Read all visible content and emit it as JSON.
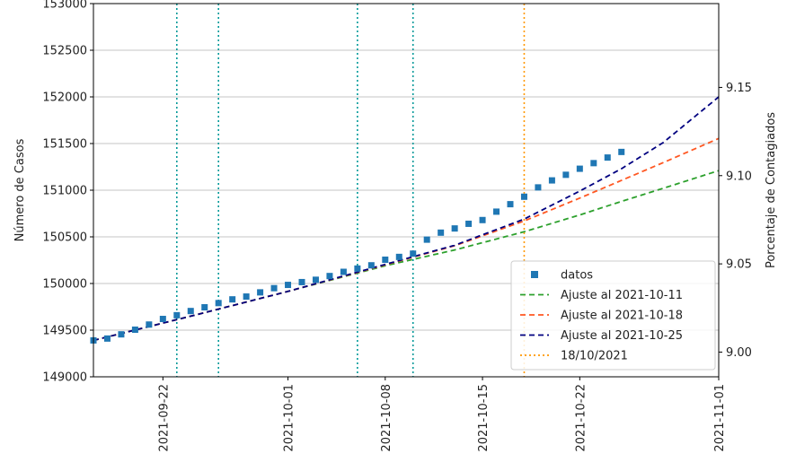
{
  "chart_data": {
    "type": "line",
    "title": "",
    "xlabel": "",
    "ylabel": "Número de Casos",
    "y2label": "Porcentaje de Contagiados",
    "xlim": [
      "2021-09-17",
      "2021-11-01"
    ],
    "ylim": [
      149000,
      153000
    ],
    "y2lim": [
      8.986,
      9.1975
    ],
    "x_ticks": [
      "2021-09-22",
      "2021-10-01",
      "2021-10-08",
      "2021-10-15",
      "2021-10-22",
      "2021-11-01"
    ],
    "y_ticks": [
      149000,
      149500,
      150000,
      150500,
      151000,
      151500,
      152000,
      152500,
      153000
    ],
    "y2_ticks": [
      9.0,
      9.05,
      9.1,
      9.15
    ],
    "y_tick_labels": [
      "149000",
      "149500",
      "150000",
      "150500",
      "151000",
      "151500",
      "152000",
      "152500",
      "153000"
    ],
    "y2_tick_labels": [
      "9.00",
      "9.05",
      "9.10",
      "9.15"
    ],
    "grid": "horizontal",
    "legend_position": "bottom-right",
    "colors": {
      "datos": "#1f77b4",
      "fit_1011": "#2ca02c",
      "fit_1018": "#ff5722",
      "fit_1025": "#000080",
      "vline_date": "#ff9800",
      "vline_markers": "#009999",
      "grid": "#b0b0b0"
    },
    "marker_vlines": [
      "2021-09-23",
      "2021-09-26",
      "2021-10-06",
      "2021-10-10"
    ],
    "date_vline": "2021-10-18",
    "series": [
      {
        "name": "datos",
        "kind": "markers",
        "x": [
          "2021-09-17",
          "2021-09-18",
          "2021-09-19",
          "2021-09-20",
          "2021-09-21",
          "2021-09-22",
          "2021-09-23",
          "2021-09-24",
          "2021-09-25",
          "2021-09-26",
          "2021-09-27",
          "2021-09-28",
          "2021-09-29",
          "2021-09-30",
          "2021-10-01",
          "2021-10-02",
          "2021-10-03",
          "2021-10-04",
          "2021-10-05",
          "2021-10-06",
          "2021-10-07",
          "2021-10-08",
          "2021-10-09",
          "2021-10-10",
          "2021-10-11",
          "2021-10-12",
          "2021-10-13",
          "2021-10-14",
          "2021-10-15",
          "2021-10-16",
          "2021-10-17",
          "2021-10-18",
          "2021-10-19",
          "2021-10-20",
          "2021-10-21",
          "2021-10-22",
          "2021-10-23",
          "2021-10-24",
          "2021-10-25"
        ],
        "y": [
          149390,
          149410,
          149455,
          149505,
          149560,
          149620,
          149660,
          149705,
          149745,
          149790,
          149830,
          149860,
          149905,
          149950,
          149985,
          150015,
          150040,
          150080,
          150125,
          150160,
          150195,
          150255,
          150285,
          150320,
          150470,
          150545,
          150590,
          150640,
          150680,
          150770,
          150850,
          150930,
          151030,
          151105,
          151165,
          151230,
          151290,
          151350,
          151410
        ]
      },
      {
        "name": "Ajuste al 2021-10-11",
        "kind": "dashed",
        "x": [
          "2021-09-17",
          "2021-09-24",
          "2021-10-01",
          "2021-10-08",
          "2021-10-13",
          "2021-10-18",
          "2021-10-22",
          "2021-10-25",
          "2021-10-28",
          "2021-11-01"
        ],
        "y": [
          149390,
          149650,
          149915,
          150190,
          150360,
          150555,
          150735,
          150880,
          151020,
          151210
        ]
      },
      {
        "name": "Ajuste al 2021-10-18",
        "kind": "dashed",
        "x": [
          "2021-09-17",
          "2021-09-24",
          "2021-10-01",
          "2021-10-08",
          "2021-10-13",
          "2021-10-18",
          "2021-10-22",
          "2021-10-25",
          "2021-10-28",
          "2021-11-01"
        ],
        "y": [
          149390,
          149650,
          149915,
          150200,
          150405,
          150670,
          150915,
          151105,
          151295,
          151555
        ]
      },
      {
        "name": "Ajuste al 2021-10-25",
        "kind": "dashed",
        "x": [
          "2021-09-17",
          "2021-09-24",
          "2021-10-01",
          "2021-10-08",
          "2021-10-13",
          "2021-10-18",
          "2021-10-22",
          "2021-10-25",
          "2021-10-28",
          "2021-11-01"
        ],
        "y": [
          149390,
          149650,
          149915,
          150205,
          150410,
          150690,
          150990,
          151230,
          151510,
          152000
        ]
      }
    ],
    "legend": [
      {
        "label": "datos",
        "style": "square",
        "color": "#1f77b4"
      },
      {
        "label": "Ajuste al 2021-10-11",
        "style": "dashed",
        "color": "#2ca02c"
      },
      {
        "label": "Ajuste al 2021-10-18",
        "style": "dashed",
        "color": "#ff5722"
      },
      {
        "label": "Ajuste al 2021-10-25",
        "style": "dashed",
        "color": "#000080"
      },
      {
        "label": "18/10/2021",
        "style": "dotted",
        "color": "#ff9800"
      }
    ]
  }
}
